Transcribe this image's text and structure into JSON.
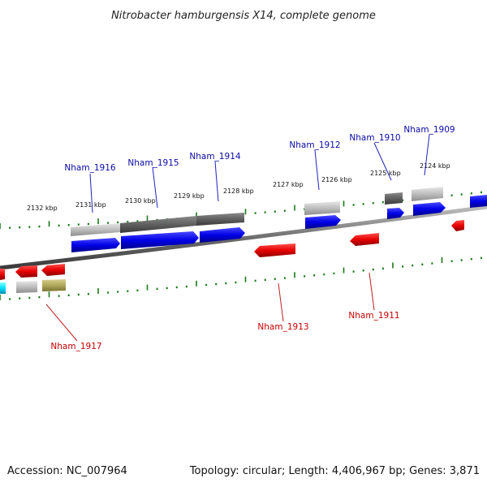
{
  "title": "Nitrobacter hamburgensis X14, complete genome",
  "footer": {
    "accession_label": "Accession:",
    "accession": "NC_007964",
    "topology_label": "Topology:",
    "topology": "circular",
    "length_label": "Length:",
    "length": "4,406,967 bp",
    "genes_label": "Genes:",
    "genes": "3,871"
  },
  "ruler": {
    "top": [
      "2132 kbp",
      "2131 kbp",
      "2130 kbp",
      "2129 kbp",
      "2128 kbp",
      "2127 kbp",
      "2126 kbp",
      "2125 kbp",
      "2124 kbp"
    ]
  },
  "genes": {
    "forward": [
      "Nham_1916",
      "Nham_1915",
      "Nham_1914",
      "Nham_1912",
      "Nham_1910",
      "Nham_1909"
    ],
    "reverse": [
      "Nham_1917",
      "Nham_1913",
      "Nham_1911"
    ]
  },
  "colors": {
    "forward": "#0000e6",
    "reverse": "#e60000",
    "forward_label": "#0a0aa8",
    "reverse_label": "#c80000",
    "ticks": "#1a7a1a",
    "backbone": "#7a7a7a"
  }
}
